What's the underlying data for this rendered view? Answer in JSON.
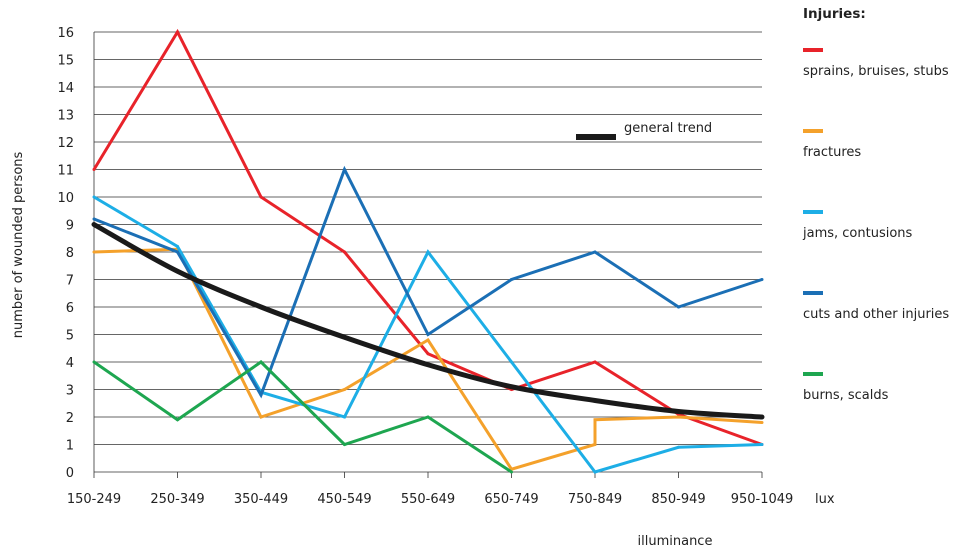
{
  "chart_data": {
    "type": "line",
    "title": "",
    "xlabel": "illuminance",
    "ylabel": "number of wounded persons",
    "x_unit_label": "lux",
    "categories": [
      "150-249",
      "250-349",
      "350-449",
      "450-549",
      "550-649",
      "650-749",
      "750-849",
      "850-949",
      "950-1049"
    ],
    "ylim": [
      0,
      16
    ],
    "yticks": [
      0,
      1,
      2,
      3,
      4,
      5,
      6,
      7,
      8,
      9,
      10,
      11,
      12,
      13,
      14,
      15,
      16
    ],
    "grid": "horizontal",
    "legend_title": "Injuries:",
    "legend_position": "right",
    "series": [
      {
        "name": "sprains, bruises, stubs",
        "color": "#e8232a",
        "values": [
          11,
          16,
          10,
          8,
          4.3,
          3,
          4,
          2.1,
          1
        ]
      },
      {
        "name": "fractures",
        "color": "#f4a12b",
        "values": [
          8,
          8.1,
          2,
          3,
          4.8,
          0.1,
          1,
          2,
          1.8
        ],
        "points": [
          [
            0,
            8
          ],
          [
            1,
            8.1
          ],
          [
            2,
            2
          ],
          [
            3,
            3
          ],
          [
            4,
            4.8
          ],
          [
            5,
            0.1
          ],
          [
            6,
            1
          ],
          [
            6,
            1.9
          ],
          [
            7,
            2
          ],
          [
            8,
            1.8
          ]
        ]
      },
      {
        "name": "jams, contusions",
        "color": "#1daee6",
        "values": [
          10,
          8.2,
          2.9,
          2,
          8,
          4,
          0,
          0.9,
          1
        ]
      },
      {
        "name": "cuts and other injuries",
        "color": "#1b6fb5",
        "values": [
          9.2,
          8,
          2.8,
          11,
          5,
          7,
          8,
          6,
          7
        ]
      },
      {
        "name": "burns, scalds",
        "color": "#1ea650",
        "values": [
          4,
          1.9,
          4,
          1,
          2,
          0,
          null,
          null,
          null
        ]
      }
    ],
    "trend": {
      "name": "general trend",
      "color": "#1a1a1a",
      "values": [
        9,
        7.3,
        6,
        4.9,
        3.9,
        3.1,
        2.6,
        2.2,
        2
      ]
    }
  }
}
